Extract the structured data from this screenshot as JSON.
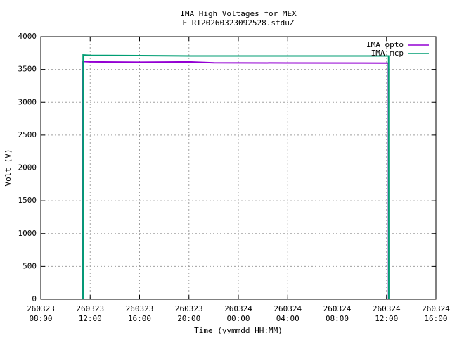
{
  "chart_data": {
    "type": "line",
    "title": "IMA High Voltages for MEX",
    "subtitle": "E_RT20260323092528.sfduZ",
    "x_label": "Time (yymmdd HH:MM)",
    "y_label": "Volt (V)",
    "xlim": [
      8,
      40
    ],
    "xticks": [
      {
        "value": 8,
        "label": "260323 08:00"
      },
      {
        "value": 12,
        "label": "260323 12:00"
      },
      {
        "value": 16,
        "label": "260323 16:00"
      },
      {
        "value": 20,
        "label": "260323 20:00"
      },
      {
        "value": 24,
        "label": "260324 00:00"
      },
      {
        "value": 28,
        "label": "260324 04:00"
      },
      {
        "value": 32,
        "label": "260324 08:00"
      },
      {
        "value": 36,
        "label": "260324 12:00"
      },
      {
        "value": 40,
        "label": "260324 16:00"
      }
    ],
    "ylim": [
      0,
      4000
    ],
    "yticks": [
      0,
      500,
      1000,
      1500,
      2000,
      2500,
      3000,
      3500,
      4000
    ],
    "grid": true,
    "legend": "top-right",
    "series": [
      {
        "name": "IMA opto",
        "color": "#9400d3",
        "x": [
          11.38,
          11.4,
          11.42,
          12,
          16,
          20,
          22,
          28,
          34,
          36.15,
          36.17
        ],
        "values": [
          0,
          180,
          3620,
          3615,
          3610,
          3615,
          3600,
          3598,
          3596,
          3595,
          0
        ]
      },
      {
        "name": "IMA mcp",
        "color": "#009e73",
        "x": [
          11.42,
          11.43,
          12,
          16,
          20,
          28,
          36.17,
          36.18
        ],
        "values": [
          0,
          3720,
          3715,
          3710,
          3705,
          3705,
          3705,
          0
        ]
      }
    ]
  }
}
